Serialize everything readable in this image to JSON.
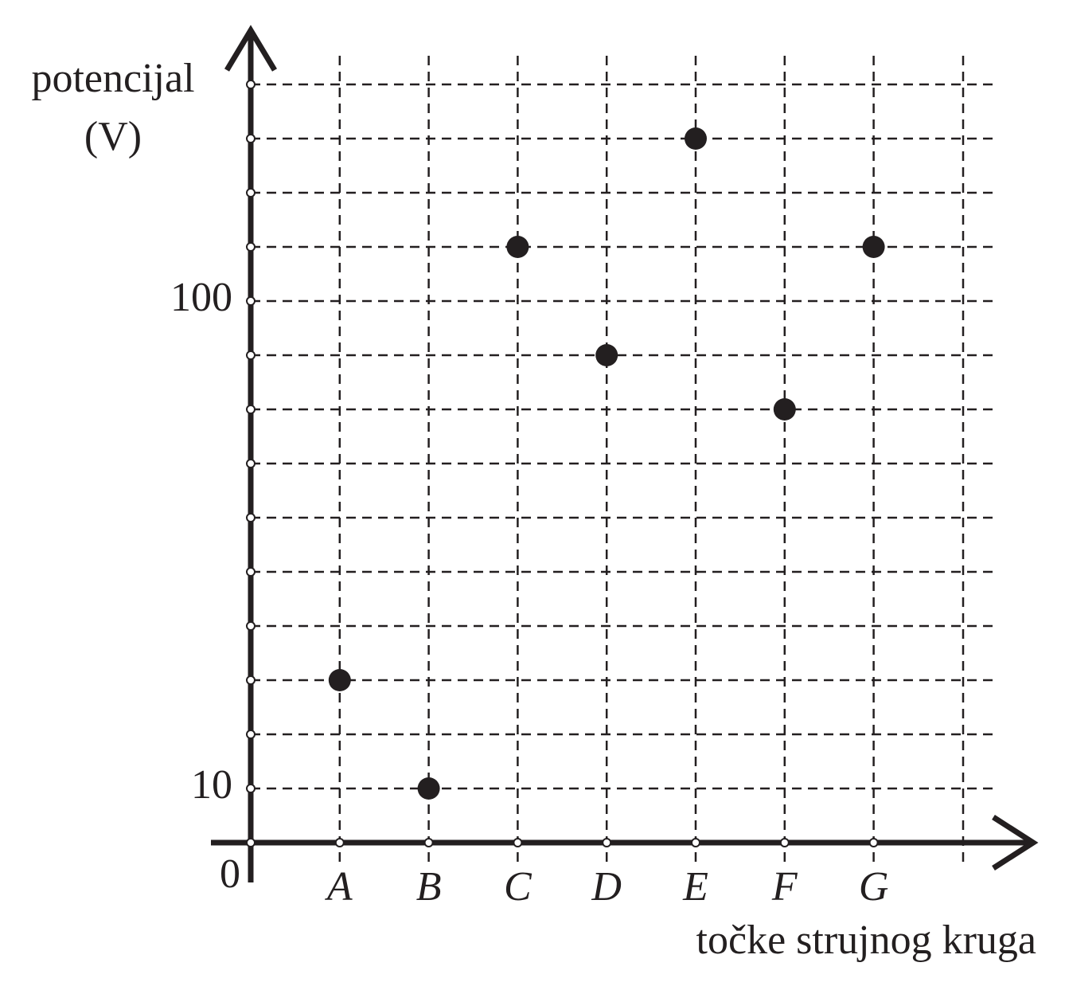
{
  "chart_data": {
    "type": "scatter",
    "ylabel": [
      "potencijal",
      "(V)"
    ],
    "xlabel": "točke strujnog kruga",
    "categories": [
      "A",
      "B",
      "C",
      "D",
      "E",
      "F",
      "G"
    ],
    "values": [
      30,
      10,
      110,
      90,
      130,
      80,
      110
    ],
    "color": "#231f20",
    "ylim": [
      0,
      150
    ],
    "yticks": [
      0,
      10,
      100
    ],
    "minor_yticks": [
      20,
      30,
      40,
      50,
      60,
      70,
      80,
      90,
      110,
      120,
      130,
      140
    ],
    "grid": true
  }
}
